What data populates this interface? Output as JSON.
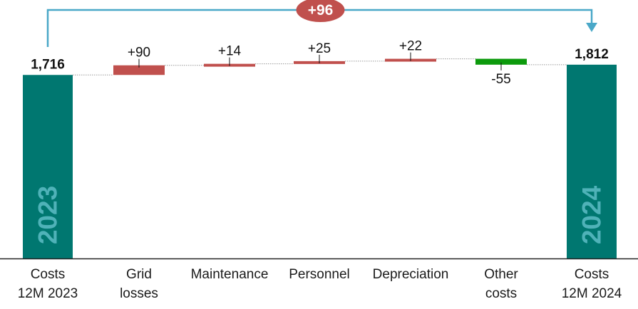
{
  "chart_data": {
    "type": "bar",
    "subtype": "waterfall",
    "categories": [
      "Costs\n12M 2023",
      "Grid\nlosses",
      "Maintenance",
      "Personnel",
      "Depreciation",
      "Other\ncosts",
      "Costs\n12M 2024"
    ],
    "values": [
      1716,
      90,
      14,
      25,
      22,
      -55,
      1812
    ],
    "bar_kinds": [
      "total",
      "delta",
      "delta",
      "delta",
      "delta",
      "delta",
      "total"
    ],
    "data_labels": [
      "1,716",
      "+90",
      "+14",
      "+25",
      "+22",
      "-55",
      "1,812"
    ],
    "total_bar_labels": [
      "2023",
      "2024"
    ],
    "change_label": "+96",
    "ylim": [
      0,
      1900
    ],
    "grid": false,
    "colors": {
      "total": "#007770",
      "total_text": "#4fb2b8",
      "increase": "#c0504d",
      "decrease": "#0c9a0c",
      "bracket": "#4aa8c8",
      "badge": "#c0504d",
      "baseline": "#262626",
      "connector": "#9a9a9a"
    }
  }
}
